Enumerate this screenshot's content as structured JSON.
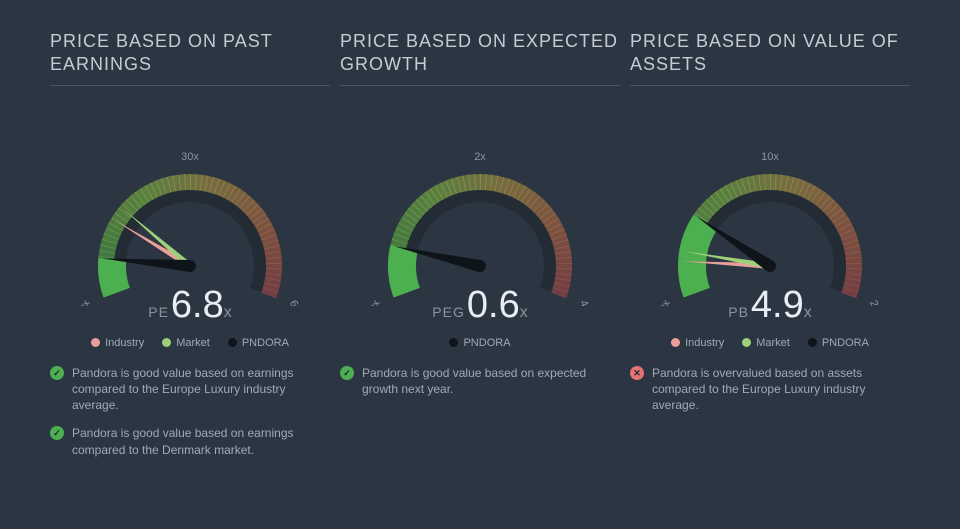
{
  "background_color": "#2c3642",
  "text_color": "#b8c0c9",
  "title_color": "#c5ccd4",
  "divider_color": "#4a5563",
  "gauge": {
    "radius_outer": 92,
    "radius_inner": 64,
    "start_angle": -200,
    "end_angle": 20,
    "bg_fill": "#232b35",
    "gradient": [
      {
        "stop": 0,
        "color": "#4caf50"
      },
      {
        "stop": 0.35,
        "color": "#8bc34a"
      },
      {
        "stop": 0.55,
        "color": "#b8a64a"
      },
      {
        "stop": 0.75,
        "color": "#c47a4a"
      },
      {
        "stop": 1,
        "color": "#b35050"
      }
    ],
    "needle_color_main": "#0e1419"
  },
  "legend_colors": {
    "industry": "#e9a09a",
    "market": "#9ed07a",
    "pndora": "#0e1419"
  },
  "panels": [
    {
      "title": "PRICE BASED ON PAST EARNINGS",
      "metric_prefix": "PE",
      "metric_value": "6.8",
      "metric_suffix": "x",
      "axis_max": 60,
      "ticks": [
        {
          "v": 0,
          "label": "0x"
        },
        {
          "v": 30,
          "label": "30x"
        },
        {
          "v": 60,
          "label": "60x"
        }
      ],
      "slice": {
        "from": 0,
        "to": 6.8,
        "color": "#4caf50"
      },
      "needles": [
        {
          "v": 14.0,
          "color": "#e9a09a",
          "key": "industry"
        },
        {
          "v": 16.5,
          "color": "#9ed07a",
          "key": "market"
        },
        {
          "v": 6.8,
          "color": "#0e1419",
          "key": "pndora",
          "thick": true
        }
      ],
      "legend": [
        {
          "label": "Industry",
          "color_ref": "industry"
        },
        {
          "label": "Market",
          "color_ref": "market"
        },
        {
          "label": "PNDORA",
          "color_ref": "pndora"
        }
      ],
      "notes": [
        {
          "status": "ok",
          "text": "Pandora is good value based on earnings compared to the Europe Luxury industry average."
        },
        {
          "status": "ok",
          "text": "Pandora is good value based on earnings compared to the Denmark market."
        }
      ]
    },
    {
      "title": "PRICE BASED ON EXPECTED GROWTH",
      "metric_prefix": "PEG",
      "metric_value": "0.6",
      "metric_suffix": "x",
      "axis_max": 4,
      "ticks": [
        {
          "v": 0,
          "label": "0x"
        },
        {
          "v": 2,
          "label": "2x"
        },
        {
          "v": 4,
          "label": "4x"
        }
      ],
      "slice": {
        "from": 0,
        "to": 0.6,
        "color": "#4caf50"
      },
      "needles": [
        {
          "v": 0.6,
          "color": "#0e1419",
          "key": "pndora",
          "thick": true
        }
      ],
      "legend": [
        {
          "label": "PNDORA",
          "color_ref": "pndora"
        }
      ],
      "notes": [
        {
          "status": "ok",
          "text": "Pandora is good value based on expected growth next year."
        }
      ]
    },
    {
      "title": "PRICE BASED ON VALUE OF ASSETS",
      "metric_prefix": "PB",
      "metric_value": "4.9",
      "metric_suffix": "x",
      "axis_max": 20,
      "ticks": [
        {
          "v": 0,
          "label": "0x"
        },
        {
          "v": 10,
          "label": "10x"
        },
        {
          "v": 20,
          "label": "20x"
        }
      ],
      "slice": {
        "from": 0,
        "to": 4.9,
        "color": "#4caf50"
      },
      "needles": [
        {
          "v": 2.1,
          "color": "#e9a09a",
          "key": "industry"
        },
        {
          "v": 2.7,
          "color": "#9ed07a",
          "key": "market"
        },
        {
          "v": 4.9,
          "color": "#0e1419",
          "key": "pndora",
          "thick": true
        }
      ],
      "legend": [
        {
          "label": "Industry",
          "color_ref": "industry"
        },
        {
          "label": "Market",
          "color_ref": "market"
        },
        {
          "label": "PNDORA",
          "color_ref": "pndora"
        }
      ],
      "notes": [
        {
          "status": "bad",
          "text": "Pandora is overvalued based on assets compared to the Europe Luxury industry average."
        }
      ]
    }
  ]
}
